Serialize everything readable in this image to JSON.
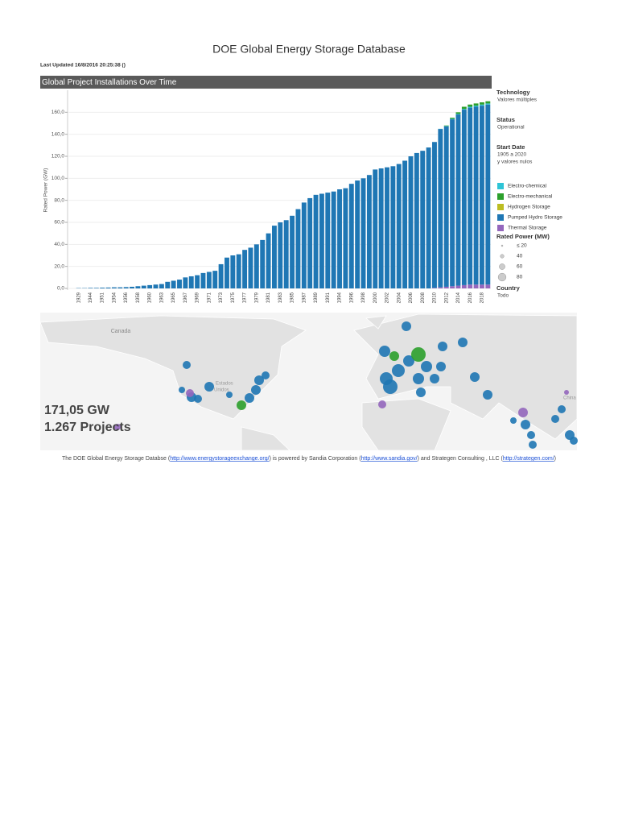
{
  "header": {
    "title": "DOE Global Energy Storage Database",
    "updated": "Last Updated 16/8/2016 20:25:38 ()",
    "section": "Global Project Installations Over Time"
  },
  "chart_data": {
    "type": "bar",
    "stacked": true,
    "y_label": "Rated Power (GW)",
    "categories": [
      "1929",
      null,
      "1944",
      null,
      "1951",
      null,
      "1954",
      null,
      "1956",
      null,
      "1958",
      null,
      "1960",
      null,
      "1963",
      null,
      "1965",
      null,
      "1967",
      null,
      "1969",
      null,
      "1971",
      null,
      "1973",
      null,
      "1975",
      null,
      "1977",
      null,
      "1979",
      null,
      "1981",
      null,
      "1983",
      null,
      "1985",
      null,
      "1987",
      null,
      "1989",
      null,
      "1991",
      null,
      "1994",
      null,
      "1996",
      null,
      "1998",
      null,
      "2000",
      null,
      "2002",
      null,
      "2004",
      null,
      "2006",
      null,
      "2008",
      null,
      "2010",
      null,
      "2012",
      null,
      "2014",
      null,
      "2016",
      null,
      "2018",
      null
    ],
    "series": [
      {
        "name": "Electro-chemical",
        "color": "#2ec4d6",
        "values": [
          0,
          0,
          0,
          0,
          0,
          0,
          0,
          0,
          0,
          0,
          0,
          0,
          0,
          0,
          0,
          0,
          0,
          0,
          0,
          0,
          0,
          0,
          0,
          0,
          0,
          0,
          0,
          0,
          0,
          0,
          0,
          0,
          0,
          0,
          0,
          0,
          0,
          0,
          0,
          0,
          0,
          0,
          0,
          0,
          0,
          0,
          0,
          0,
          0,
          0,
          0,
          0,
          0,
          0,
          0,
          0,
          0,
          0,
          0,
          0,
          0,
          0.2,
          0.3,
          0.4,
          0.5,
          0.6,
          0.8,
          1,
          1,
          1
        ]
      },
      {
        "name": "Electro-mechanical",
        "color": "#2ca02c",
        "values": [
          0,
          0,
          0,
          0,
          0,
          0,
          0,
          0,
          0,
          0,
          0,
          0,
          0,
          0,
          0,
          0,
          0,
          0,
          0,
          0,
          0,
          0,
          0,
          0,
          0,
          0,
          0,
          0,
          0,
          0,
          0,
          0,
          0,
          0,
          0,
          0,
          0,
          0,
          0,
          0,
          0,
          0,
          0,
          0,
          0,
          0,
          0,
          0,
          0,
          0,
          0,
          0,
          0,
          0,
          0,
          0,
          0,
          0,
          0,
          0,
          0,
          0,
          0.5,
          1,
          1.5,
          2,
          2,
          2,
          2,
          2
        ]
      },
      {
        "name": "Hydrogen Storage",
        "color": "#bcbd22",
        "values": [
          0,
          0,
          0,
          0,
          0,
          0,
          0,
          0,
          0,
          0,
          0,
          0,
          0,
          0,
          0,
          0,
          0,
          0,
          0,
          0,
          0,
          0,
          0,
          0,
          0,
          0,
          0,
          0,
          0,
          0,
          0,
          0,
          0,
          0,
          0,
          0,
          0,
          0,
          0,
          0,
          0,
          0,
          0,
          0,
          0,
          0,
          0,
          0,
          0,
          0,
          0,
          0,
          0,
          0,
          0,
          0,
          0,
          0,
          0,
          0,
          0,
          0,
          0,
          0,
          0,
          0,
          0,
          0,
          0,
          0
        ]
      },
      {
        "name": "Pumped Hydro Storage",
        "color": "#1f77b4",
        "values": [
          0.3,
          0.3,
          0.5,
          0.5,
          0.7,
          0.8,
          1,
          1,
          1.2,
          1.5,
          2,
          2.5,
          3,
          3.5,
          4,
          6,
          7,
          8,
          10,
          11,
          12,
          14,
          15,
          16,
          22,
          28,
          30,
          31,
          35,
          37,
          40,
          44,
          50,
          57,
          60,
          62,
          66,
          72,
          78,
          82,
          85,
          86,
          87,
          88,
          90,
          91,
          95,
          98,
          100,
          103,
          108,
          109,
          110,
          111,
          113,
          116,
          120,
          123,
          125,
          128,
          132.5,
          143.8,
          145.7,
          151.6,
          155.5,
          159.4,
          160.7,
          161.5,
          162.5,
          163.5
        ]
      },
      {
        "name": "Thermal Storage",
        "color": "#9467bd",
        "values": [
          0,
          0,
          0,
          0,
          0,
          0,
          0,
          0,
          0,
          0,
          0,
          0,
          0,
          0,
          0,
          0,
          0,
          0,
          0,
          0,
          0,
          0,
          0,
          0,
          0,
          0,
          0,
          0,
          0,
          0,
          0,
          0,
          0,
          0,
          0,
          0,
          0,
          0,
          0,
          0,
          0,
          0,
          0,
          0,
          0,
          0,
          0,
          0,
          0,
          0,
          0,
          0,
          0,
          0,
          0,
          0,
          0,
          0,
          0,
          0,
          0.5,
          1,
          1.5,
          2,
          2.5,
          3,
          3.5,
          3.5,
          3.5,
          3.5
        ]
      }
    ],
    "ylim": [
      0,
      180
    ],
    "yticks": [
      {
        "value": 0,
        "label": "0,0"
      },
      {
        "value": 20,
        "label": "20,0"
      },
      {
        "value": 40,
        "label": "40,0"
      },
      {
        "value": 60,
        "label": "60,0"
      },
      {
        "value": 80,
        "label": "80,0"
      },
      {
        "value": 100,
        "label": "100,0"
      },
      {
        "value": 120,
        "label": "120,0"
      },
      {
        "value": 140,
        "label": "140,0"
      },
      {
        "value": 160,
        "label": "160,0"
      }
    ]
  },
  "filters": [
    {
      "title": "Technology",
      "value": "Valores múltiples"
    },
    {
      "title": "Status",
      "value": "Operational"
    },
    {
      "title": "Start Date",
      "value": "1905 a 2020",
      "value2": "y valores nulos"
    }
  ],
  "size_legend": {
    "title": "Rated Power (MW)",
    "items": [
      "≤ 20",
      "40",
      "60",
      "80"
    ]
  },
  "country": {
    "title": "Country",
    "value": "Todo"
  },
  "map": {
    "region": "Canada",
    "region2": "Estados",
    "region3": "Unidos",
    "region4": "China",
    "total": "171,05 GW",
    "projects": "1.267 Projects"
  },
  "footer": {
    "t1": "The DOE Global Energy Storage Databse (",
    "l1": "http://www.energystorageexchange.org/",
    "t2": ") is powered by Sandia Corporation (",
    "l2": "http://www.sandia.gov/",
    "t3": ") and Strategen Consulting , LLC (",
    "l3": "http://strategen.com/",
    "t4": ")"
  }
}
